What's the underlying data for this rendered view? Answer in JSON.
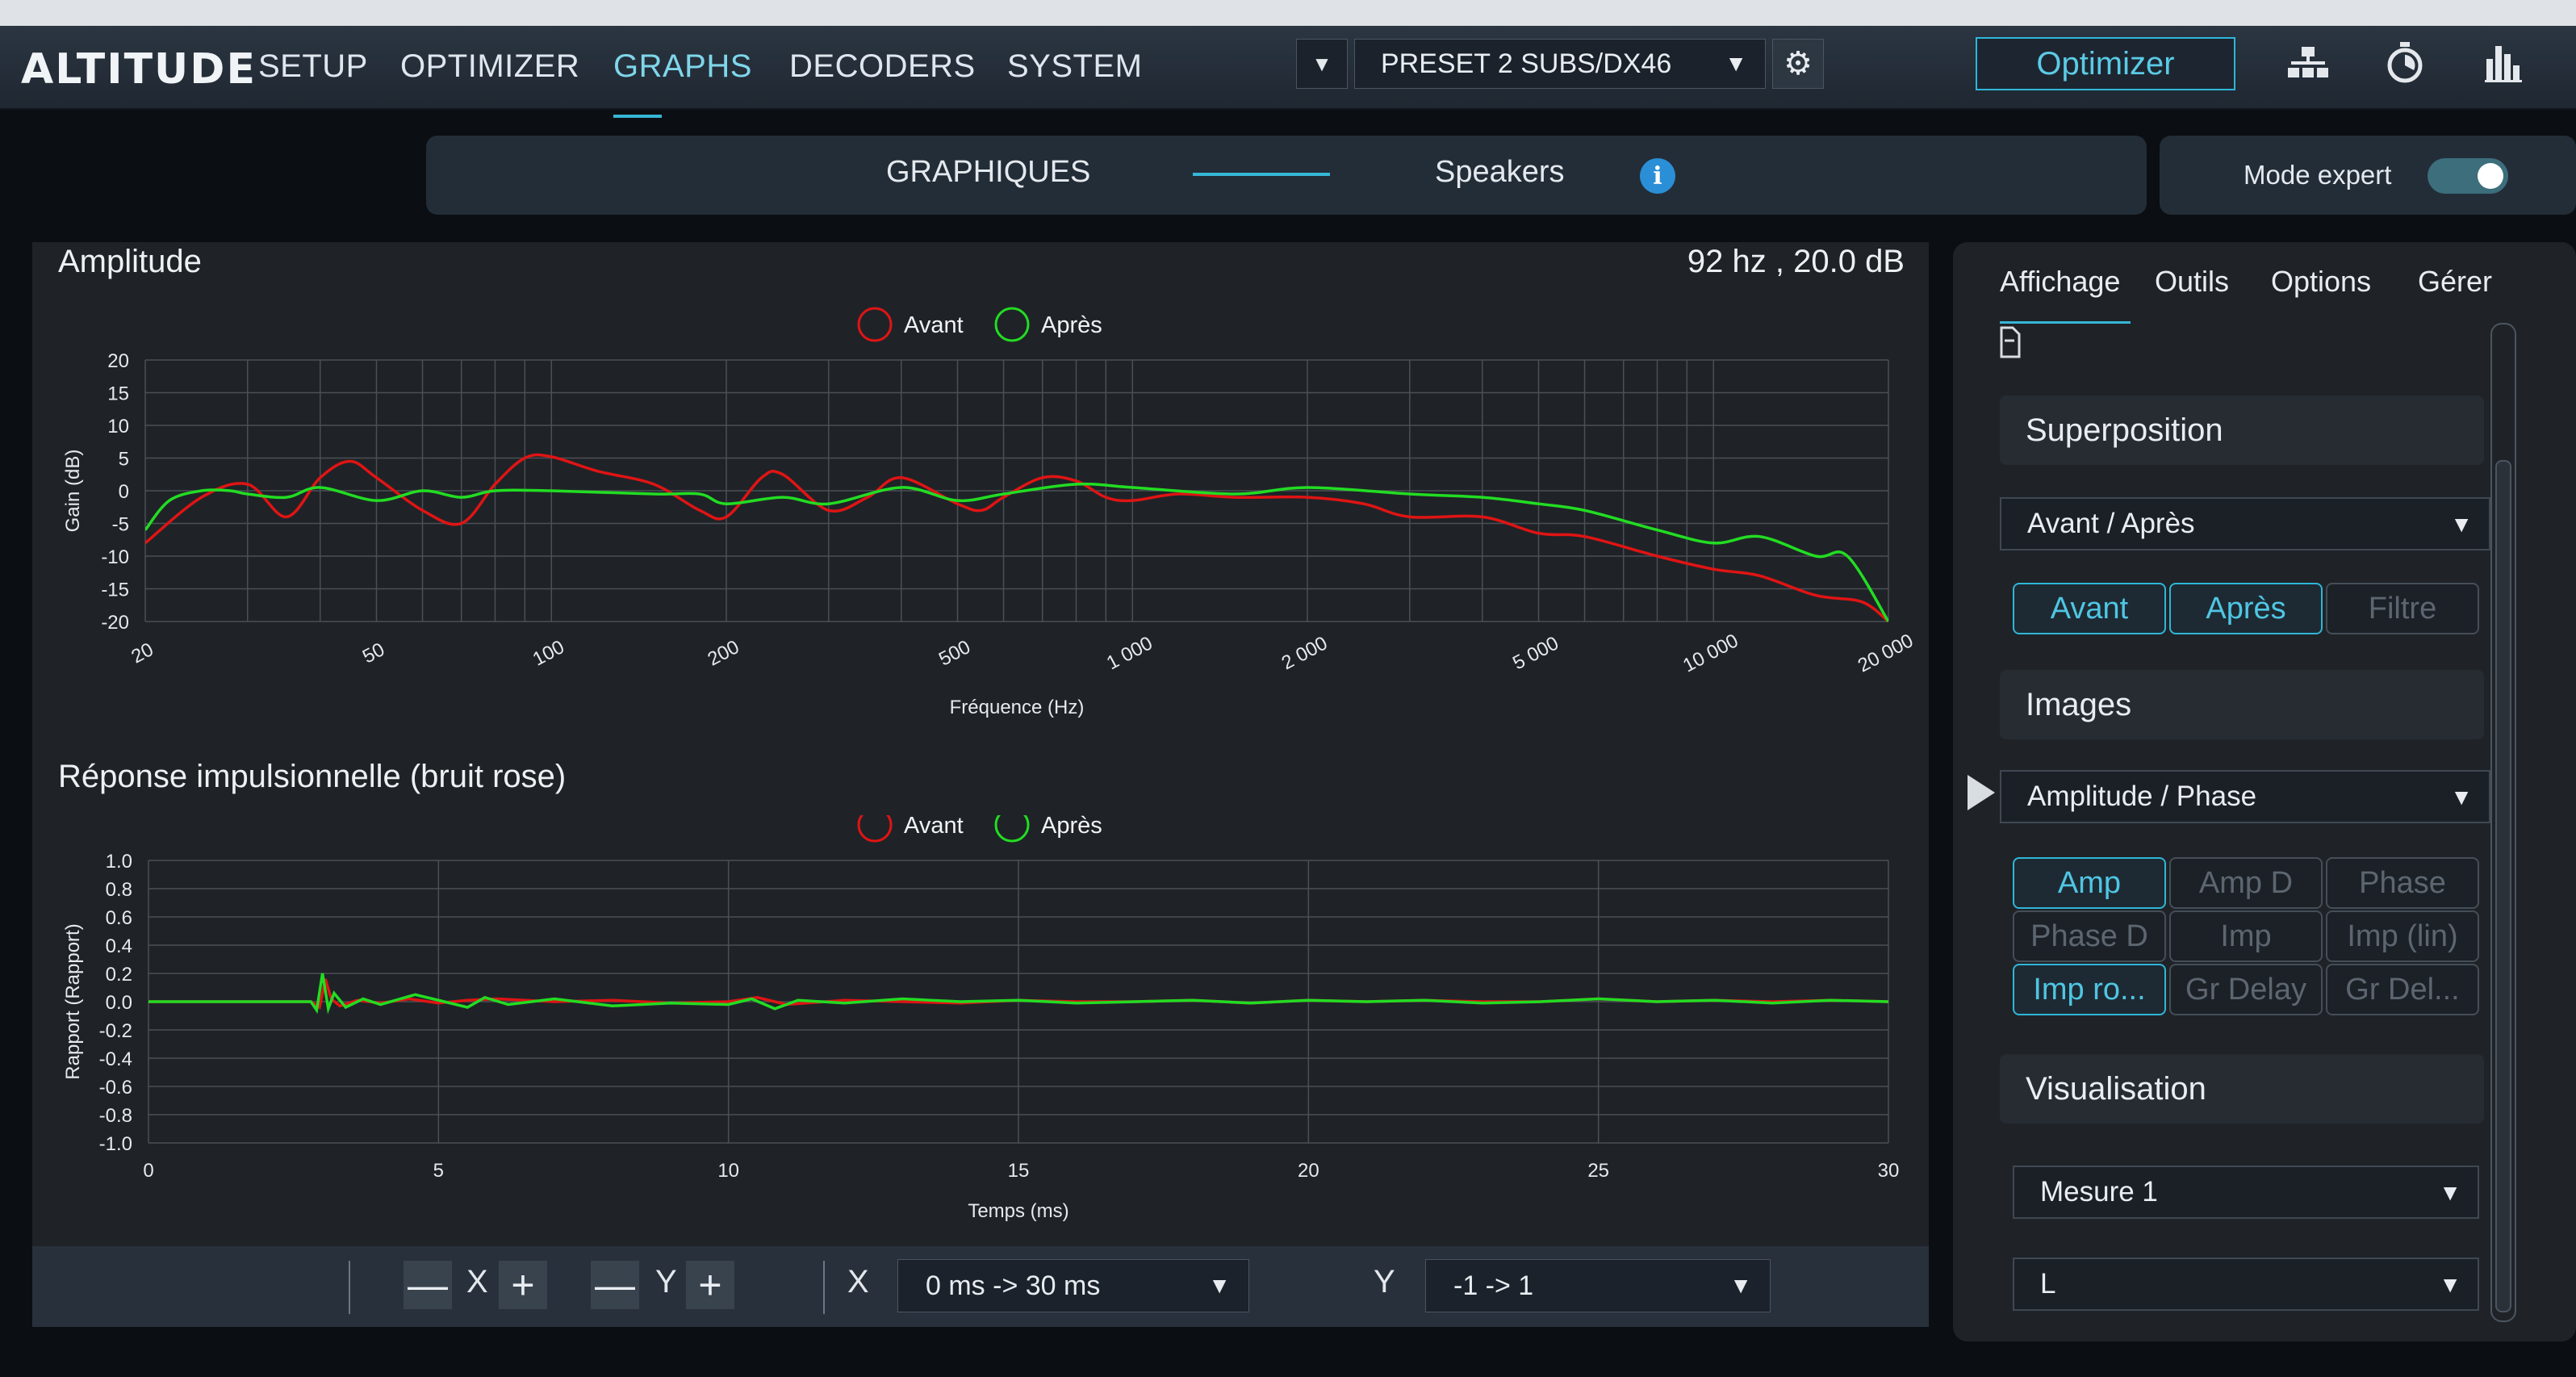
{
  "app": {
    "logo": "ALTITUDE",
    "nav": [
      "SETUP",
      "OPTIMIZER",
      "GRAPHS",
      "DECODERS",
      "SYSTEM"
    ],
    "nav_active": "GRAPHS",
    "preset": "PRESET 2 SUBS/DX46",
    "optimizer_button": "Optimizer",
    "icons": [
      "gear-icon",
      "hierarchy-icon",
      "stopwatch-icon",
      "bar-chart-icon"
    ]
  },
  "subbar": {
    "tab_left": "GRAPHIQUES",
    "tab_right": "Speakers",
    "info": "i",
    "mode_expert_label": "Mode expert",
    "mode_expert_on": true
  },
  "graphs": {
    "amplitude_title": "Amplitude",
    "readout": "92 hz , 20.0 dB",
    "impulse_title": "Réponse impulsionnelle (bruit rose)",
    "legend_before": "Avant",
    "legend_after": "Après",
    "colors": {
      "before": "#e01414",
      "after": "#22dd22",
      "grid": "#4a5056",
      "accent": "#36b6d6"
    }
  },
  "chart_data": [
    {
      "type": "line",
      "title": "Amplitude",
      "xlabel": "Fréquence (Hz)",
      "ylabel": "Gain (dB)",
      "xscale": "log",
      "xlim": [
        20,
        20000
      ],
      "ylim": [
        -20,
        20
      ],
      "x_ticks": [
        "20",
        "50",
        "100",
        "200",
        "500",
        "1 000",
        "2 000",
        "5 000",
        "10 000",
        "20 000"
      ],
      "y_ticks": [
        "20",
        "15",
        "10",
        "5",
        "0",
        "-5",
        "-10",
        "-15",
        "-20"
      ],
      "grid": true,
      "legend": "top-center",
      "series": [
        {
          "name": "Avant",
          "color": "#e01414",
          "x": [
            20,
            25,
            30,
            35,
            40,
            45,
            50,
            60,
            70,
            80,
            90,
            100,
            120,
            150,
            180,
            200,
            230,
            250,
            300,
            350,
            400,
            500,
            550,
            600,
            700,
            800,
            900,
            1000,
            1200,
            1500,
            2000,
            2500,
            3000,
            4000,
            5000,
            6000,
            8000,
            10000,
            12000,
            15000,
            18000,
            20000
          ],
          "y": [
            -8,
            -1,
            1,
            -4,
            2,
            4.5,
            2,
            -3,
            -5,
            1,
            5,
            5.2,
            3,
            1,
            -3,
            -4,
            2,
            2.5,
            -3,
            -1,
            2,
            -2,
            -3,
            -1,
            2,
            1.5,
            -1,
            -1.5,
            -0.5,
            -1,
            -1,
            -2,
            -4,
            -4,
            -6.5,
            -7,
            -10,
            -12,
            -13,
            -16,
            -17,
            -20
          ]
        },
        {
          "name": "Après",
          "color": "#22dd22",
          "x": [
            20,
            22,
            25,
            28,
            30,
            35,
            40,
            50,
            60,
            70,
            80,
            100,
            150,
            180,
            200,
            250,
            300,
            400,
            500,
            600,
            800,
            1000,
            1500,
            2000,
            3000,
            4000,
            5000,
            6000,
            8000,
            10000,
            12000,
            15000,
            17000,
            20000
          ],
          "y": [
            -6,
            -1.5,
            0,
            0,
            -0.5,
            -1,
            0.5,
            -1.5,
            0,
            -1,
            0,
            0,
            -0.5,
            -0.5,
            -2,
            -1,
            -2,
            0.5,
            -1.5,
            -0.5,
            1,
            0.5,
            -0.5,
            0.5,
            -0.5,
            -1,
            -2,
            -3,
            -6,
            -8,
            -7,
            -10,
            -10,
            -20
          ]
        }
      ]
    },
    {
      "type": "line",
      "title": "Réponse impulsionnelle (bruit rose)",
      "xlabel": "Temps (ms)",
      "ylabel": "Rapport (Rapport)",
      "xlim": [
        0,
        30
      ],
      "ylim": [
        -1,
        1
      ],
      "x_ticks": [
        "0",
        "5",
        "10",
        "15",
        "20",
        "25",
        "30"
      ],
      "y_ticks": [
        "1.0",
        "0.8",
        "0.6",
        "0.4",
        "0.2",
        "0.0",
        "-0.2",
        "-0.4",
        "-0.6",
        "-0.8",
        "-1.0"
      ],
      "grid": true,
      "legend": "top-center",
      "series": [
        {
          "name": "Avant",
          "color": "#e01414",
          "x": [
            0,
            2.8,
            2.95,
            3.05,
            3.15,
            3.3,
            3.6,
            4,
            4.5,
            5,
            5.5,
            6,
            7,
            8,
            9,
            10,
            10.5,
            11,
            12,
            13,
            14,
            15,
            16,
            17,
            18,
            19,
            20,
            21,
            22,
            23,
            24,
            25,
            26,
            27,
            28,
            29,
            30
          ],
          "y": [
            0,
            0.0,
            -0.04,
            0.16,
            0.02,
            -0.03,
            0.01,
            -0.01,
            0.02,
            -0.01,
            0.01,
            0.02,
            0.0,
            0.01,
            -0.01,
            0.0,
            0.03,
            -0.02,
            0.01,
            0.0,
            -0.01,
            0.01,
            0.0,
            0.0,
            0.01,
            -0.01,
            0.01,
            0.0,
            0.01,
            0.0,
            0.0,
            0.02,
            0.0,
            0.01,
            0.0,
            0.01,
            0.0
          ]
        },
        {
          "name": "Après",
          "color": "#22dd22",
          "x": [
            0,
            2.8,
            2.9,
            3.0,
            3.1,
            3.2,
            3.4,
            3.7,
            4,
            4.6,
            5,
            5.5,
            5.8,
            6.2,
            7,
            8,
            9,
            10,
            10.4,
            10.8,
            11.2,
            12,
            13,
            14,
            15,
            16,
            17,
            18,
            19,
            20,
            21,
            22,
            23,
            24,
            25,
            26,
            27,
            28,
            29,
            30
          ],
          "y": [
            0,
            0.0,
            -0.06,
            0.2,
            -0.05,
            0.06,
            -0.04,
            0.02,
            -0.02,
            0.05,
            0.01,
            -0.04,
            0.03,
            -0.02,
            0.02,
            -0.03,
            -0.01,
            -0.02,
            0.02,
            -0.05,
            0.01,
            -0.01,
            0.02,
            0.0,
            0.01,
            -0.01,
            0.0,
            0.01,
            -0.01,
            0.01,
            0.0,
            0.01,
            -0.01,
            0.0,
            0.02,
            0.0,
            0.01,
            -0.01,
            0.01,
            0.0
          ]
        }
      ]
    }
  ],
  "bottom_bar": {
    "zoom_minus": "—",
    "zoom_plus": "+",
    "x_label": "X",
    "y_label": "Y",
    "x_range": "0 ms -> 30 ms",
    "y_range": "-1 -> 1"
  },
  "side_panel": {
    "tabs": [
      "Affichage",
      "Outils",
      "Options",
      "Gérer"
    ],
    "active_tab": "Affichage",
    "superposition": {
      "title": "Superposition",
      "select": "Avant / Après",
      "toggles": [
        {
          "label": "Avant",
          "on": true
        },
        {
          "label": "Après",
          "on": true
        },
        {
          "label": "Filtre",
          "on": false
        }
      ]
    },
    "images": {
      "title": "Images",
      "select": "Amplitude / Phase",
      "toggles": [
        {
          "label": "Amp",
          "on": true
        },
        {
          "label": "Amp D",
          "on": false
        },
        {
          "label": "Phase",
          "on": false
        },
        {
          "label": "Phase D",
          "on": false
        },
        {
          "label": "Imp",
          "on": false
        },
        {
          "label": "Imp (lin)",
          "on": false
        },
        {
          "label": "Imp ro...",
          "on": true
        },
        {
          "label": "Gr Delay",
          "on": false
        },
        {
          "label": "Gr Del...",
          "on": false
        }
      ]
    },
    "visualisation": {
      "title": "Visualisation",
      "select_measure": "Mesure 1",
      "select_channel": "L"
    }
  }
}
